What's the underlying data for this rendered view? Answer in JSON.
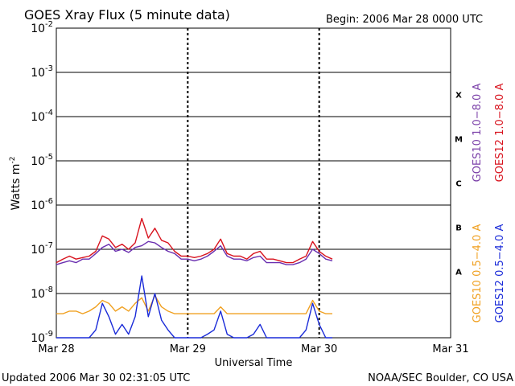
{
  "header": {
    "title": "GOES Xray Flux (5 minute data)",
    "begin": "Begin:  2006 Mar 28 0000 UTC"
  },
  "footer": {
    "updated": "Updated 2006 Mar 30 02:31:05 UTC",
    "credit": "NOAA/SEC Boulder, CO USA"
  },
  "chart_data": {
    "type": "line",
    "ylabel_main": "Watts m",
    "ylabel_exp": "-2",
    "xlabel": "Universal Time",
    "yscale": "log",
    "ylim": [
      1e-09,
      0.01
    ],
    "xlim": [
      0,
      3
    ],
    "x_units": "days since 2006 Mar 28 0000 UTC",
    "y_ticks": [
      {
        "value": 0.01,
        "base": "10",
        "exp": "-2"
      },
      {
        "value": 0.001,
        "base": "10",
        "exp": "-3"
      },
      {
        "value": 0.0001,
        "base": "10",
        "exp": "-4"
      },
      {
        "value": 1e-05,
        "base": "10",
        "exp": "-5"
      },
      {
        "value": 1e-06,
        "base": "10",
        "exp": "-6"
      },
      {
        "value": 1e-07,
        "base": "10",
        "exp": "-7"
      },
      {
        "value": 1e-08,
        "base": "10",
        "exp": "-8"
      },
      {
        "value": 1e-09,
        "base": "10",
        "exp": "-9"
      }
    ],
    "x_ticks": [
      {
        "value": 0,
        "label": "Mar 28"
      },
      {
        "value": 1,
        "label": "Mar 29"
      },
      {
        "value": 2,
        "label": "Mar 30"
      },
      {
        "value": 3,
        "label": "Mar 31"
      }
    ],
    "flare_classes": [
      {
        "label": "X",
        "low": 0.0001,
        "high": 0.001
      },
      {
        "label": "M",
        "low": 1e-05,
        "high": 0.0001
      },
      {
        "label": "C",
        "low": 1e-06,
        "high": 1e-05
      },
      {
        "label": "B",
        "low": 1e-07,
        "high": 1e-06
      },
      {
        "label": "A",
        "low": 1e-08,
        "high": 1e-07
      }
    ],
    "legend_long": [
      {
        "label": "GOES10 1.0−8.0 A",
        "color": "#7a3fa8"
      },
      {
        "label": "GOES12 1.0−8.0 A",
        "color": "#d8131e"
      }
    ],
    "legend_short": [
      {
        "label": "GOES10 0.5−4.0 A",
        "color": "#f0a020"
      },
      {
        "label": "GOES12 0.5−4.0 A",
        "color": "#1a2bd8"
      }
    ],
    "series": [
      {
        "name": "GOES10 1.0−8.0 A",
        "color": "#6a2fb0",
        "x": [
          0.0,
          0.05,
          0.1,
          0.15,
          0.2,
          0.25,
          0.3,
          0.35,
          0.4,
          0.45,
          0.5,
          0.55,
          0.6,
          0.65,
          0.7,
          0.75,
          0.8,
          0.85,
          0.9,
          0.95,
          1.0,
          1.05,
          1.1,
          1.15,
          1.2,
          1.25,
          1.3,
          1.35,
          1.4,
          1.45,
          1.5,
          1.55,
          1.6,
          1.65,
          1.7,
          1.75,
          1.8,
          1.85,
          1.9,
          1.95,
          2.0,
          2.05,
          2.1
        ],
        "y": [
          4.5e-08,
          5e-08,
          5.5e-08,
          5e-08,
          6e-08,
          6e-08,
          8e-08,
          1.1e-07,
          1.3e-07,
          9e-08,
          1e-07,
          8.5e-08,
          1.1e-07,
          1.2e-07,
          1.5e-07,
          1.4e-07,
          1.1e-07,
          9e-08,
          8e-08,
          6e-08,
          6e-08,
          5.5e-08,
          6e-08,
          7e-08,
          9e-08,
          1.2e-07,
          7e-08,
          6e-08,
          6e-08,
          5.5e-08,
          6.5e-08,
          7e-08,
          5e-08,
          5e-08,
          5e-08,
          4.5e-08,
          4.5e-08,
          5e-08,
          6e-08,
          1e-07,
          8e-08,
          6e-08,
          5.5e-08
        ]
      },
      {
        "name": "GOES12 1.0−8.0 A",
        "color": "#d8131e",
        "x": [
          0.0,
          0.05,
          0.1,
          0.15,
          0.2,
          0.25,
          0.3,
          0.35,
          0.4,
          0.45,
          0.5,
          0.55,
          0.6,
          0.65,
          0.7,
          0.75,
          0.8,
          0.85,
          0.9,
          0.95,
          1.0,
          1.05,
          1.1,
          1.15,
          1.2,
          1.25,
          1.3,
          1.35,
          1.4,
          1.45,
          1.5,
          1.55,
          1.6,
          1.65,
          1.7,
          1.75,
          1.8,
          1.85,
          1.9,
          1.95,
          2.0,
          2.05,
          2.1
        ],
        "y": [
          5e-08,
          6e-08,
          7e-08,
          6e-08,
          6.5e-08,
          7e-08,
          9e-08,
          2e-07,
          1.7e-07,
          1.1e-07,
          1.3e-07,
          1e-07,
          1.4e-07,
          5e-07,
          1.8e-07,
          3e-07,
          1.6e-07,
          1.4e-07,
          9e-08,
          7e-08,
          7e-08,
          6.5e-08,
          7e-08,
          8e-08,
          1e-07,
          1.7e-07,
          8e-08,
          7e-08,
          7e-08,
          6e-08,
          8e-08,
          9e-08,
          6e-08,
          6e-08,
          5.5e-08,
          5e-08,
          5e-08,
          6e-08,
          7e-08,
          1.5e-07,
          9e-08,
          7e-08,
          6e-08
        ]
      },
      {
        "name": "GOES10 0.5−4.0 A",
        "color": "#f0a020",
        "x": [
          0.0,
          0.05,
          0.1,
          0.15,
          0.2,
          0.25,
          0.3,
          0.35,
          0.4,
          0.45,
          0.5,
          0.55,
          0.6,
          0.65,
          0.7,
          0.75,
          0.8,
          0.85,
          0.9,
          0.95,
          1.0,
          1.05,
          1.1,
          1.15,
          1.2,
          1.25,
          1.3,
          1.35,
          1.4,
          1.45,
          1.5,
          1.55,
          1.6,
          1.65,
          1.7,
          1.75,
          1.8,
          1.85,
          1.9,
          1.95,
          2.0,
          2.05,
          2.1
        ],
        "y": [
          3.5e-09,
          3.5e-09,
          4e-09,
          4e-09,
          3.5e-09,
          4e-09,
          5e-09,
          7e-09,
          6e-09,
          4e-09,
          5e-09,
          4e-09,
          6e-09,
          8e-09,
          4e-09,
          9e-09,
          5e-09,
          4e-09,
          3.5e-09,
          3.5e-09,
          3.5e-09,
          3.5e-09,
          3.5e-09,
          3.5e-09,
          3.5e-09,
          5e-09,
          3.5e-09,
          3.5e-09,
          3.5e-09,
          3.5e-09,
          3.5e-09,
          3.5e-09,
          3.5e-09,
          3.5e-09,
          3.5e-09,
          3.5e-09,
          3.5e-09,
          3.5e-09,
          3.5e-09,
          7e-09,
          4e-09,
          3.5e-09,
          3.5e-09
        ]
      },
      {
        "name": "GOES12 0.5−4.0 A",
        "color": "#1a2bd8",
        "x": [
          0.0,
          0.05,
          0.1,
          0.15,
          0.2,
          0.25,
          0.3,
          0.35,
          0.4,
          0.45,
          0.5,
          0.55,
          0.6,
          0.65,
          0.7,
          0.75,
          0.8,
          0.85,
          0.9,
          0.95,
          1.0,
          1.05,
          1.1,
          1.15,
          1.2,
          1.25,
          1.3,
          1.35,
          1.4,
          1.45,
          1.5,
          1.55,
          1.6,
          1.65,
          1.7,
          1.75,
          1.8,
          1.85,
          1.9,
          1.95,
          2.0,
          2.05,
          2.1
        ],
        "y": [
          1e-09,
          1e-09,
          1e-09,
          1e-09,
          1e-09,
          1e-09,
          1.5e-09,
          6e-09,
          3e-09,
          1.2e-09,
          2e-09,
          1.2e-09,
          3e-09,
          2.5e-08,
          3e-09,
          1e-08,
          2.5e-09,
          1.5e-09,
          1e-09,
          1e-09,
          1e-09,
          1e-09,
          1e-09,
          1.2e-09,
          1.5e-09,
          4e-09,
          1.2e-09,
          1e-09,
          1e-09,
          1e-09,
          1.2e-09,
          2e-09,
          1e-09,
          1e-09,
          1e-09,
          1e-09,
          1e-09,
          1e-09,
          1.5e-09,
          6e-09,
          2e-09,
          1e-09,
          1e-09
        ]
      }
    ]
  }
}
